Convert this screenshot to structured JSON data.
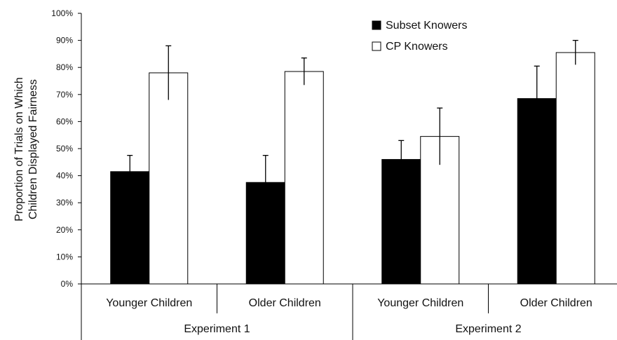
{
  "chart_data": {
    "type": "bar",
    "title": "",
    "xlabel": "",
    "ylabel_lines": [
      "Proportion of Trials on Which",
      "Children Displayed Fairness"
    ],
    "ylim": [
      0,
      100
    ],
    "yticks": [
      "0%",
      "10%",
      "20%",
      "30%",
      "40%",
      "50%",
      "60%",
      "70%",
      "80%",
      "90%",
      "100%"
    ],
    "grid": false,
    "legend_position": "top-right",
    "categories": [
      "Younger Children",
      "Older Children",
      "Younger Children",
      "Older Children"
    ],
    "groups": [
      {
        "label": "Experiment 1",
        "categories": [
          0,
          1
        ]
      },
      {
        "label": "Experiment 2",
        "categories": [
          2,
          3
        ]
      }
    ],
    "series": [
      {
        "name": "Subset Knowers",
        "values": [
          41.5,
          37.5,
          46,
          68.5
        ],
        "error": [
          6,
          10,
          7,
          12
        ],
        "color": "#000000"
      },
      {
        "name": "CP Knowers",
        "values": [
          78,
          78.5,
          54.5,
          85.5
        ],
        "error": [
          10,
          5,
          10.5,
          4.5
        ],
        "color": "#ffffff"
      }
    ]
  }
}
